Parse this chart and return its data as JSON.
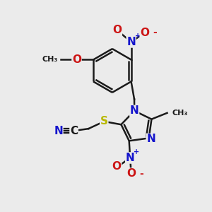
{
  "bg_color": "#ebebeb",
  "bond_color": "#1a1a1a",
  "bond_width": 1.8,
  "atom_colors": {
    "C": "#1a1a1a",
    "N": "#1414cc",
    "O": "#cc1414",
    "S": "#b8b800",
    "H": "#1a1a1a"
  },
  "font_size_atom": 11,
  "font_size_label": 9,
  "font_size_charge": 7
}
